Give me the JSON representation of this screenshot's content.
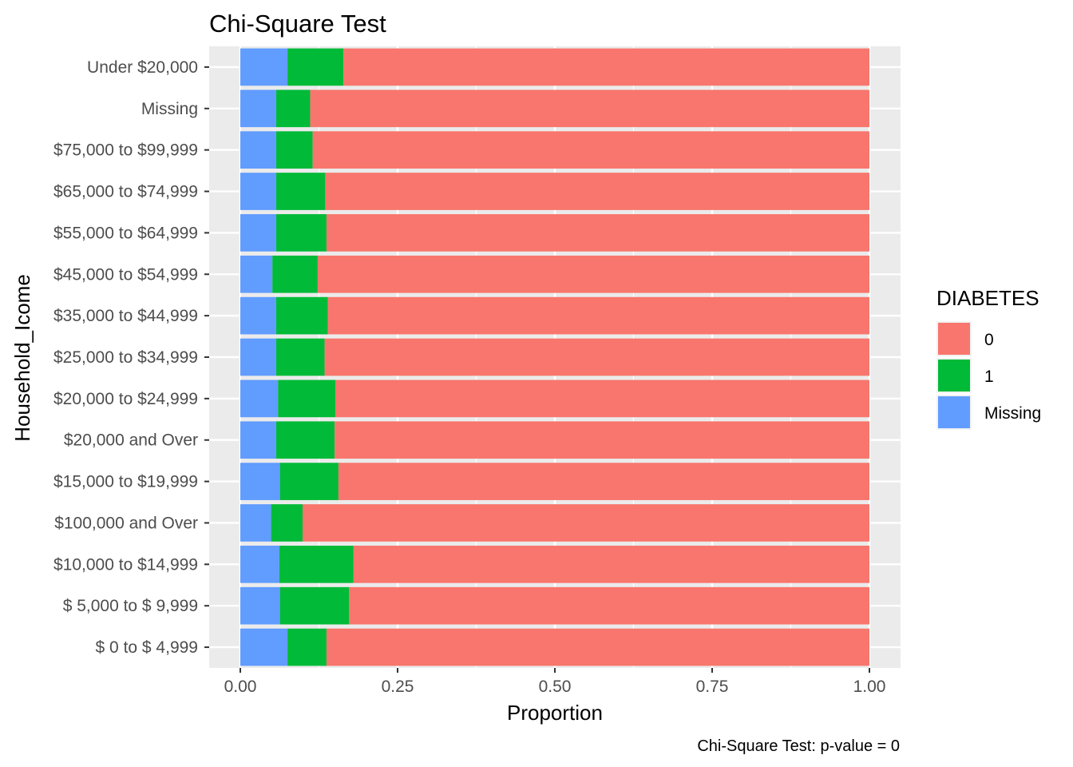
{
  "chart_data": {
    "type": "bar",
    "orientation": "horizontal",
    "stacked": "proportion",
    "title": "Chi-Square Test",
    "xlabel": "Proportion",
    "ylabel": "Household_Icome",
    "xlim": [
      0,
      1
    ],
    "xticks": [
      "0.00",
      "0.25",
      "0.50",
      "0.75",
      "1.00"
    ],
    "xtick_values": [
      0,
      0.25,
      0.5,
      0.75,
      1.0
    ],
    "grid": true,
    "legend": {
      "title": "DIABETES",
      "placement": "right",
      "entries": [
        "0",
        "1",
        "Missing"
      ]
    },
    "caption": "Chi-Square Test: p-value = 0",
    "categories": [
      "Under $20,000",
      "Missing",
      "$75,000 to $99,999",
      "$65,000 to $74,999",
      "$55,000 to $64,999",
      "$45,000 to $54,999",
      "$35,000 to $44,999",
      "$25,000 to $34,999",
      "$20,000 to $24,999",
      "$20,000 and Over",
      "$15,000 to $19,999",
      "$100,000 and Over",
      "$10,000 to $14,999",
      "$ 5,000 to $ 9,999",
      "$ 0 to $ 4,999"
    ],
    "series": [
      {
        "name": "Missing",
        "color": "#619CFF",
        "values": [
          0.075,
          0.057,
          0.057,
          0.057,
          0.057,
          0.051,
          0.057,
          0.057,
          0.06,
          0.057,
          0.063,
          0.049,
          0.062,
          0.063,
          0.075
        ]
      },
      {
        "name": "1",
        "color": "#00BA38",
        "values": [
          0.089,
          0.054,
          0.058,
          0.078,
          0.08,
          0.072,
          0.082,
          0.077,
          0.091,
          0.093,
          0.093,
          0.05,
          0.118,
          0.11,
          0.062
        ]
      },
      {
        "name": "0",
        "color": "#F8766D",
        "values": [
          0.836,
          0.889,
          0.885,
          0.865,
          0.863,
          0.877,
          0.861,
          0.866,
          0.849,
          0.85,
          0.844,
          0.901,
          0.82,
          0.827,
          0.863
        ]
      }
    ]
  }
}
